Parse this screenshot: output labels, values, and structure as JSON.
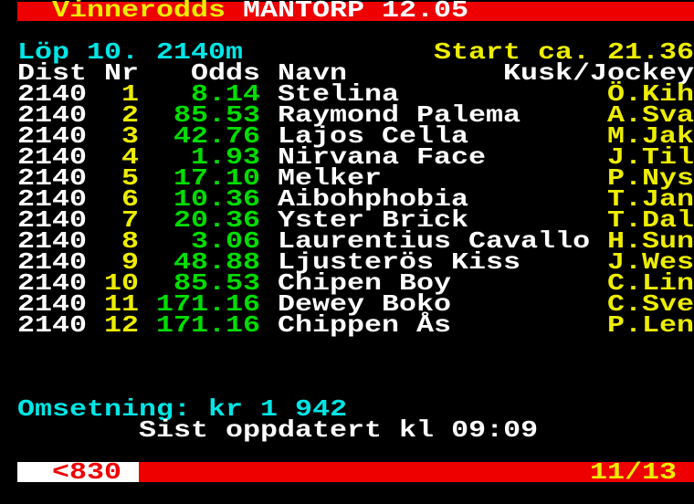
{
  "palette": {
    "red": "#ee0000",
    "yellow": "#eded00",
    "green": "#00dd00",
    "cyan": "#00e6e6",
    "white": "#ffffff",
    "black": "#000000"
  },
  "header": {
    "service_label": "Vinnerodds",
    "track_title": "MANTORP 12.05"
  },
  "race": {
    "label": "Löp 10. 2140m",
    "start_label": "Start ca. 21.36"
  },
  "table": {
    "headers": {
      "dist": "Dist",
      "nr": "Nr",
      "odds": "Odds",
      "name": "Navn",
      "driver": "Kusk/Jockey"
    },
    "rows": [
      {
        "dist": "2140",
        "nr": "1",
        "odds": "8.14",
        "name": "Stelina",
        "driver": "Ö.Kih"
      },
      {
        "dist": "2140",
        "nr": "2",
        "odds": "85.53",
        "name": "Raymond Palema",
        "driver": "A.Sva"
      },
      {
        "dist": "2140",
        "nr": "3",
        "odds": "42.76",
        "name": "Lajos Cella",
        "driver": "M.Jak"
      },
      {
        "dist": "2140",
        "nr": "4",
        "odds": "1.93",
        "name": "Nirvana Face",
        "driver": "J.Til"
      },
      {
        "dist": "2140",
        "nr": "5",
        "odds": "17.10",
        "name": "Melker",
        "driver": "P.Nys"
      },
      {
        "dist": "2140",
        "nr": "6",
        "odds": "10.36",
        "name": "Aibohphobia",
        "driver": "T.Jan"
      },
      {
        "dist": "2140",
        "nr": "7",
        "odds": "20.36",
        "name": "Yster Brick",
        "driver": "T.Dal"
      },
      {
        "dist": "2140",
        "nr": "8",
        "odds": "3.06",
        "name": "Laurentius Cavallo",
        "driver": "H.Sun"
      },
      {
        "dist": "2140",
        "nr": "9",
        "odds": "48.88",
        "name": "Ljusterös Kiss",
        "driver": "J.Wes"
      },
      {
        "dist": "2140",
        "nr": "10",
        "odds": "85.53",
        "name": "Chipen Boy",
        "driver": "C.Lin"
      },
      {
        "dist": "2140",
        "nr": "11",
        "odds": "171.16",
        "name": "Dewey Boko",
        "driver": "C.Sve"
      },
      {
        "dist": "2140",
        "nr": "12",
        "odds": "171.16",
        "name": "Chippen Ås",
        "driver": "P.Len"
      }
    ]
  },
  "footer": {
    "turnover": "Omsetning: kr 1 942",
    "updated": "Sist oppdatert kl 09:09"
  },
  "statusbar": {
    "page_back": "<830",
    "page_index": "11/13"
  }
}
